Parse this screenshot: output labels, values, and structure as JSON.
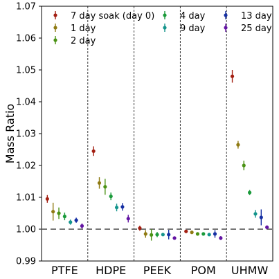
{
  "chart_data": {
    "type": "scatter",
    "title": "",
    "xlabel": "",
    "ylabel": "Mass Ratio",
    "ylim": [
      0.99,
      1.07
    ],
    "yticks": [
      "0.99",
      "1.00",
      "1.01",
      "1.02",
      "1.03",
      "1.04",
      "1.05",
      "1.06",
      "1.07"
    ],
    "categories": [
      "PTFE",
      "HDPE",
      "PEEK",
      "POM",
      "UHMW"
    ],
    "reference_line": 1.0,
    "grid": false,
    "legend_position": "top",
    "series": [
      {
        "name": "7 day soak (day 0)",
        "color": "#a31f12",
        "values": [
          1.0095,
          1.0245,
          1.0003,
          0.9993,
          1.048
        ],
        "errors": [
          0.0012,
          0.0015,
          0.0008,
          0.0005,
          0.002
        ]
      },
      {
        "name": "1 day",
        "color": "#8f7a12",
        "values": [
          1.0055,
          1.0145,
          0.9985,
          0.999,
          1.0265
        ],
        "errors": [
          0.0028,
          0.0018,
          0.0012,
          0.0005,
          0.0012
        ]
      },
      {
        "name": "2 day",
        "color": "#4a9214",
        "values": [
          1.005,
          1.0133,
          0.9982,
          0.9985,
          1.02
        ],
        "errors": [
          0.0018,
          0.0025,
          0.0018,
          0.0005,
          0.0015
        ]
      },
      {
        "name": "4 day",
        "color": "#1a9a3a",
        "values": [
          1.004,
          1.0103,
          0.9983,
          0.9985,
          1.0115
        ],
        "errors": [
          0.0012,
          0.0012,
          0.0008,
          0.0004,
          0.0008
        ]
      },
      {
        "name": "9 day",
        "color": "#14948c",
        "values": [
          1.0022,
          1.0068,
          0.9983,
          0.9983,
          1.0048
        ],
        "errors": [
          0.0008,
          0.0012,
          0.0004,
          0.0004,
          0.0012
        ]
      },
      {
        "name": "13 day",
        "color": "#152fa3",
        "values": [
          1.0028,
          1.007,
          0.9983,
          0.9985,
          1.0037
        ],
        "errors": [
          0.0008,
          0.0012,
          0.0015,
          0.0012,
          0.0025
        ]
      },
      {
        "name": "25 day",
        "color": "#6314a3",
        "values": [
          1.001,
          1.0033,
          0.9972,
          0.9972,
          1.0006
        ],
        "errors": [
          0.0008,
          0.0012,
          0.0004,
          0.0006,
          0.0006
        ]
      }
    ]
  }
}
